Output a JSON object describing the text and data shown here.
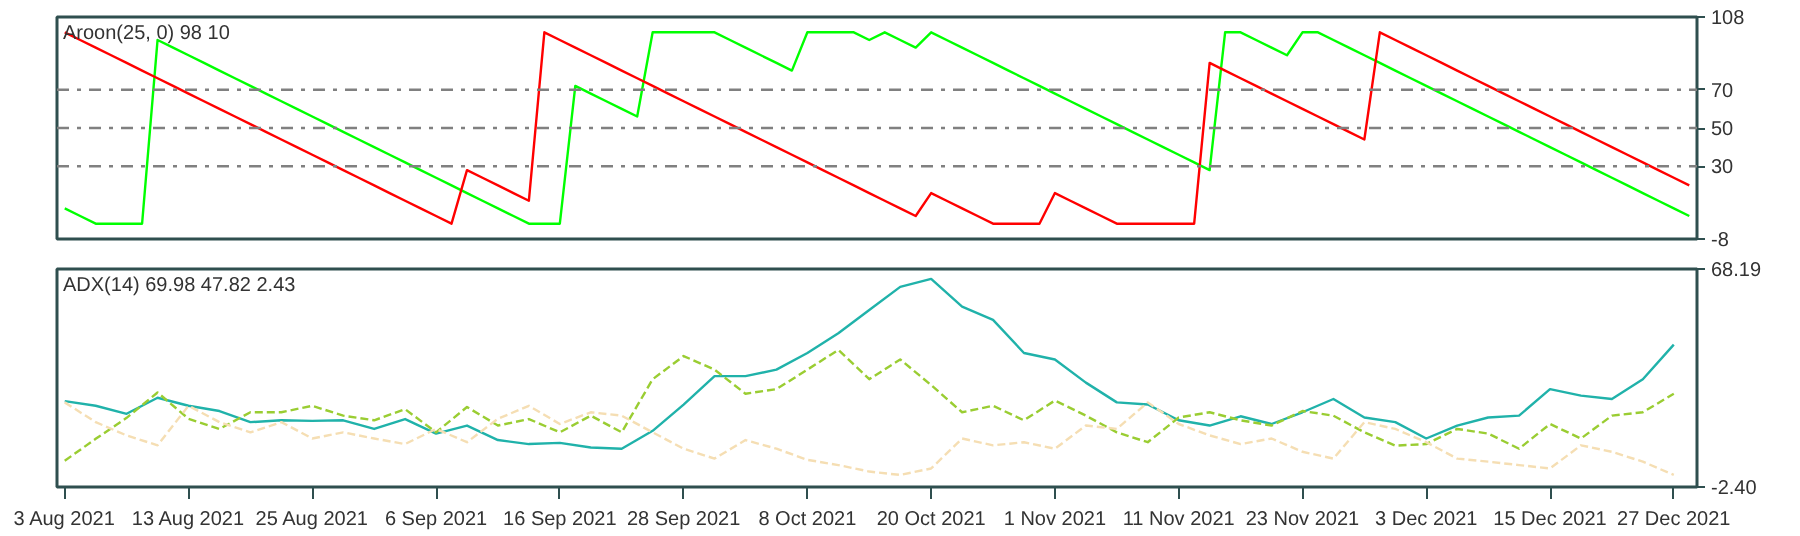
{
  "chart_data": [
    {
      "type": "line",
      "title": "Aroon(25, 0) 98 10",
      "tick_labels": "y",
      "grid": false,
      "categories": [
        null,
        null,
        null,
        null,
        null,
        null,
        null,
        null,
        null,
        null,
        null,
        null,
        null,
        null,
        null,
        null,
        null,
        null,
        null,
        null,
        null,
        null,
        null,
        null,
        null,
        null,
        null,
        null,
        null,
        null,
        null,
        null,
        null,
        null,
        null,
        null,
        null,
        null,
        null,
        null,
        null,
        null,
        null,
        null,
        null,
        null,
        null,
        null,
        null,
        null,
        null,
        null,
        null,
        null,
        null,
        null,
        null,
        null,
        null,
        null,
        null,
        null,
        null,
        null,
        null,
        null,
        null,
        null,
        null,
        null,
        null,
        null,
        null,
        null,
        null,
        null,
        null,
        null,
        null,
        null,
        null,
        null,
        null,
        null,
        null,
        null,
        null,
        null,
        null,
        null,
        null,
        null,
        null,
        null,
        null,
        null,
        null,
        null,
        null,
        null,
        null,
        null,
        null,
        null,
        null,
        null
      ],
      "ylim": [
        -8,
        108
      ],
      "yticks": [
        -8,
        30,
        50,
        70,
        108
      ],
      "ref_lines": [
        {
          "axis": "y",
          "value": 70,
          "color": "#808080",
          "line_style": "dashed"
        },
        {
          "axis": "y",
          "value": 50,
          "color": "#808080",
          "line_style": "dashed"
        },
        {
          "axis": "y",
          "value": 30,
          "color": "#808080",
          "line_style": "dashed"
        }
      ],
      "series": [
        {
          "color": "#00ff00",
          "line_style": "solid",
          "values": [
            8,
            4,
            0,
            0,
            0,
            0,
            96,
            92,
            88,
            84,
            80,
            76,
            72,
            68,
            64,
            60,
            56,
            52,
            48,
            44,
            40,
            36,
            32,
            28,
            24,
            20,
            16,
            12,
            8,
            4,
            0,
            0,
            0,
            72,
            68,
            64,
            60,
            56,
            100,
            100,
            100,
            100,
            100,
            96,
            92,
            88,
            84,
            80,
            100,
            100,
            100,
            100,
            96,
            100,
            96,
            92,
            100,
            96,
            92,
            88,
            84,
            80,
            76,
            72,
            68,
            64,
            60,
            56,
            52,
            48,
            44,
            40,
            36,
            32,
            28,
            100,
            100,
            96,
            92,
            88,
            100,
            100,
            96,
            92,
            88,
            84,
            80,
            76,
            72,
            68,
            64,
            60,
            56,
            52,
            48,
            44,
            40,
            36,
            32,
            28,
            24,
            20,
            16,
            12,
            8,
            4
          ]
        },
        {
          "color": "#ff0000",
          "line_style": "solid",
          "values": [
            100,
            96,
            92,
            88,
            84,
            80,
            76,
            72,
            68,
            64,
            60,
            56,
            52,
            48,
            44,
            40,
            36,
            32,
            28,
            24,
            20,
            16,
            12,
            8,
            4,
            0,
            28,
            24,
            20,
            16,
            12,
            100,
            96,
            92,
            88,
            84,
            80,
            76,
            72,
            68,
            64,
            60,
            56,
            52,
            48,
            44,
            40,
            36,
            32,
            28,
            24,
            20,
            16,
            12,
            8,
            4,
            16,
            12,
            8,
            4,
            0,
            0,
            0,
            0,
            16,
            12,
            8,
            4,
            0,
            0,
            0,
            0,
            0,
            0,
            84,
            80,
            76,
            72,
            68,
            64,
            60,
            56,
            52,
            48,
            44,
            100,
            96,
            92,
            88,
            84,
            80,
            76,
            72,
            68,
            64,
            60,
            56,
            52,
            48,
            44,
            40,
            36,
            32,
            28,
            24,
            20
          ]
        }
      ]
    },
    {
      "type": "line",
      "title": "ADX(14) 69.98 47.82 2.43",
      "grid": false,
      "categories": [
        "3 Aug 2021",
        null,
        null,
        null,
        "13 Aug 2021",
        null,
        null,
        null,
        "25 Aug 2021",
        null,
        null,
        null,
        "6 Sep 2021",
        null,
        null,
        null,
        "16 Sep 2021",
        null,
        null,
        null,
        "28 Sep 2021",
        null,
        null,
        null,
        "8 Oct 2021",
        null,
        null,
        null,
        "20 Oct 2021",
        null,
        null,
        null,
        "1 Nov 2021",
        null,
        null,
        null,
        "11 Nov 2021",
        null,
        null,
        null,
        "23 Nov 2021",
        null,
        null,
        null,
        "3 Dec 2021",
        null,
        null,
        null,
        "15 Dec 2021",
        null,
        null,
        null,
        "27 Dec 2021"
      ],
      "ylim": [
        -2.4,
        68.19
      ],
      "yticks": [
        68.19,
        {
          "value": -2.4,
          "label": "-2.40"
        }
      ],
      "series": [
        {
          "color": "#20b2aa",
          "line_style": "solid",
          "values": [
            25.4,
            23.9,
            21.3,
            26.5,
            23.9,
            22.2,
            18.6,
            19.2,
            19,
            19.2,
            16.4,
            19.6,
            14.9,
            17.5,
            12.8,
            11.5,
            11.9,
            10.4,
            10,
            15.8,
            24.3,
            33.5,
            33.5,
            35.6,
            41,
            47.4,
            54.9,
            62.4,
            65,
            56,
            51.7,
            41,
            38.9,
            31.4,
            25,
            24.3,
            19.2,
            17.5,
            20.5,
            18,
            21.8,
            26.1,
            20.1,
            18.6,
            13.3,
            17.5,
            20.1,
            20.7,
            29.3,
            27.2,
            26.1,
            32.5,
            43.7
          ]
        },
        {
          "color": "#9acd32",
          "line_style": "dashed",
          "values": [
            6.1,
            13.2,
            20,
            28.2,
            19.7,
            16.4,
            21.8,
            21.8,
            23.9,
            20.7,
            19.2,
            22.8,
            15.3,
            23.5,
            17.5,
            19.6,
            15.3,
            20.7,
            15.3,
            32.5,
            40,
            35.6,
            27.8,
            29.3,
            35.6,
            42,
            32.5,
            38.9,
            30.6,
            21.8,
            23.9,
            19.2,
            25.6,
            20.7,
            15.3,
            12.1,
            20.1,
            21.8,
            19.2,
            17.5,
            22.2,
            20.7,
            15.3,
            11,
            11.5,
            16.4,
            14.9,
            10,
            18,
            13.3,
            20.7,
            21.8,
            27.8
          ]
        },
        {
          "color": "#f5deb3",
          "line_style": "dashed",
          "values": [
            25,
            18.6,
            14.3,
            11.1,
            23.9,
            18.6,
            15.3,
            18.6,
            13.3,
            15.3,
            13.3,
            11.5,
            16.4,
            12.1,
            19.7,
            23.9,
            18,
            21.8,
            20.7,
            15.3,
            10,
            6.8,
            12.8,
            10,
            6.4,
            4.7,
            2.6,
            1.5,
            3.6,
            13.3,
            11.1,
            12.1,
            10,
            17.5,
            16.4,
            25,
            18,
            14.3,
            11.5,
            13.3,
            9,
            6.8,
            18.6,
            16.4,
            12.1,
            6.8,
            5.8,
            4.7,
            3.6,
            11.1,
            9,
            5.8,
            1.5
          ]
        }
      ]
    }
  ]
}
